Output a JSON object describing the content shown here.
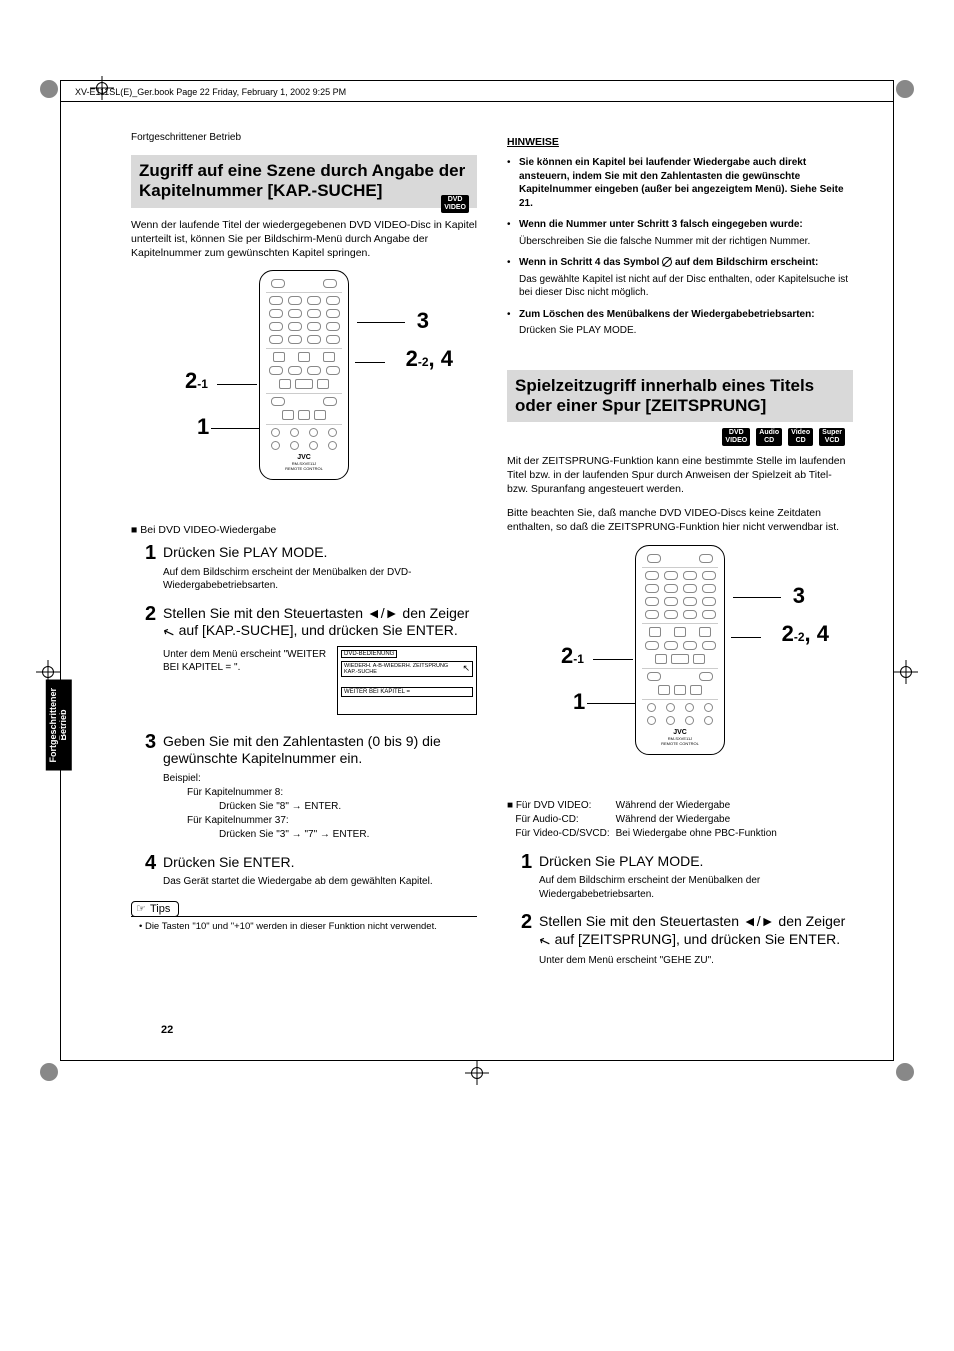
{
  "pageMeta": {
    "headerLine": "XV-E111SL(E)_Ger.book  Page 22  Friday, February 1, 2002  9:25 PM",
    "breadcrumb": "Fortgeschrittener Betrieb",
    "sideTab": "Fortgeschrittener\nBetrieb",
    "pageNumber": "22"
  },
  "colors": {
    "sectionBg": "#d9d9d9",
    "text": "#000000",
    "badgeBg": "#000000",
    "badgeFg": "#ffffff"
  },
  "badges": {
    "dvdVideo": "DVD\nVIDEO",
    "audioCd": "Audio\nCD",
    "videoCd": "Video\nCD",
    "superVcd": "Super\nVCD"
  },
  "left": {
    "title": "Zugriff auf eine Szene durch Angabe der Kapitelnummer [KAP.-SUCHE]",
    "intro": "Wenn der laufende Titel der wiedergegebenen DVD VIDEO-Disc in Kapitel unterteilt ist, können Sie per Bildschirm-Menü durch Angabe der Kapitelnummer zum gewünschten Kapitel springen.",
    "diagramLabels": {
      "c3": "3",
      "c22": "2",
      "c22sub": "-2",
      "c4": ", 4",
      "c21": "2",
      "c21sub": "-1",
      "c1": "1"
    },
    "subheading": "Bei DVD VIDEO-Wiedergabe",
    "step1": {
      "title": "Drücken Sie PLAY MODE.",
      "body": "Auf dem Bildschirm erscheint der Menübalken der DVD-Wiedergabebetriebsarten."
    },
    "step2": {
      "titleA": "Stellen Sie mit den Steuertasten ",
      "titleB": " den Zeiger ",
      "titleC": " auf [KAP.-SUCHE], und drücken Sie ENTER.",
      "bodyText": "Unter dem Menü erscheint \"WEITER BEI KAPITEL = \".",
      "osd": {
        "label": "DVD-BEDIENUNG",
        "menuItems": "WIEDERH.  A-B-WIEDERH.  ZEITSPRUNG   KAP.-SUCHE",
        "subRow": "WEITER BEI KAPITEL ="
      }
    },
    "step3": {
      "title": "Geben Sie mit den Zahlentasten (0 bis 9) die gewünschte Kapitelnummer ein.",
      "example": {
        "label": "Beispiel:",
        "l1": "Für Kapitelnummer 8:",
        "l2": "Drücken Sie \"8\" → ENTER.",
        "l3": "Für Kapitelnummer 37:",
        "l4": "Drücken Sie \"3\" → \"7\" → ENTER."
      }
    },
    "step4": {
      "title": "Drücken Sie ENTER.",
      "body": "Das Gerät startet die Wiedergabe ab dem gewählten Kapitel."
    },
    "tips": {
      "label": "Tips",
      "body": "• Die Tasten \"10\" und \"+10\" werden in dieser Funktion nicht verwendet."
    }
  },
  "right": {
    "hinweise": {
      "title": "HINWEISE",
      "items": [
        {
          "head": "Sie können ein Kapitel bei laufender Wiedergabe auch direkt ansteuern, indem Sie mit den Zahlentasten die gewünschte Kapitelnummer eingeben (außer bei angezeigtem Menü). Siehe Seite 21.",
          "body": ""
        },
        {
          "head": "Wenn die Nummer unter Schritt 3 falsch eingegeben wurde:",
          "body": "Überschreiben Sie die falsche Nummer mit der richtigen Nummer."
        },
        {
          "head": "Wenn in Schritt 4 das Symbol ⊘ auf dem Bildschirm erscheint:",
          "body": "Das gewählte Kapitel ist nicht auf der Disc enthalten, oder Kapitelsuche ist bei dieser Disc nicht möglich."
        },
        {
          "head": "Zum Löschen des Menübalkens der Wiedergabebetriebsarten:",
          "body": "Drücken Sie PLAY MODE."
        }
      ]
    },
    "section2": {
      "title": "Spielzeitzugriff innerhalb eines Titels oder einer Spur [ZEITSPRUNG]",
      "intro1": "Mit der ZEITSPRUNG-Funktion kann eine bestimmte Stelle im laufenden Titel bzw. in der laufenden Spur durch Anweisen der Spielzeit ab Titel- bzw. Spuranfang angesteuert werden.",
      "intro2": "Bitte beachten Sie, daß manche DVD VIDEO-Discs keine Zeitdaten enthalten, so daß die ZEITSPRUNG-Funktion hier nicht verwendbar ist.",
      "modeTable": {
        "r1a": "Für DVD VIDEO:",
        "r1b": "Während der Wiedergabe",
        "r2a": "Für Audio-CD:",
        "r2b": "Während der Wiedergabe",
        "r3a": "Für Video-CD/SVCD:",
        "r3b": "Bei Wiedergabe ohne PBC-Funktion"
      },
      "diagramLabels": {
        "c3": "3",
        "c22": "2",
        "c22sub": "-2",
        "c4": ", 4",
        "c21": "2",
        "c21sub": "-1",
        "c1": "1"
      },
      "step1": {
        "title": "Drücken Sie PLAY MODE.",
        "body": "Auf dem Bildschirm erscheint der Menübalken der Wiedergabebetriebsarten."
      },
      "step2": {
        "titleA": "Stellen Sie mit den Steuertasten ",
        "titleB": " den Zeiger ",
        "titleC": " auf [ZEITSPRUNG], und drücken Sie ENTER.",
        "body": "Unter dem Menü erscheint \"GEHE ZU\"."
      }
    }
  }
}
